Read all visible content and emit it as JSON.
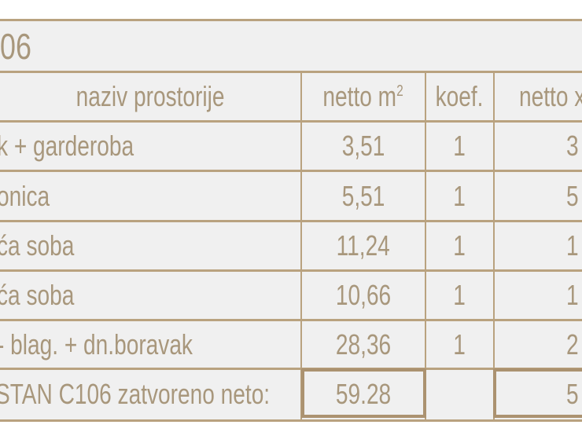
{
  "title": "06",
  "headers": {
    "name": "naziv prostorije",
    "netto": "netto m",
    "netto_sup": "2",
    "koef": "koef.",
    "netto_x": "netto x"
  },
  "rows": [
    {
      "name": "k + garderoba",
      "netto": "3,51",
      "koef": "1",
      "netto_x": "3"
    },
    {
      "name": "onica",
      "netto": "5,51",
      "koef": "1",
      "netto_x": "5"
    },
    {
      "name": "ća soba",
      "netto": "11,24",
      "koef": "1",
      "netto_x": "1"
    },
    {
      "name": "ća soba",
      "netto": "10,66",
      "koef": "1",
      "netto_x": "1"
    },
    {
      "name": "- blag. + dn.boravak",
      "netto": "28,36",
      "koef": "1",
      "netto_x": "2"
    }
  ],
  "total": {
    "label": "STAN C106 zatvoreno neto:",
    "netto": "59.28",
    "netto_x": "5"
  },
  "colors": {
    "line": "#b9a27f",
    "text": "#a8977c",
    "background": "#f0f0f0"
  }
}
